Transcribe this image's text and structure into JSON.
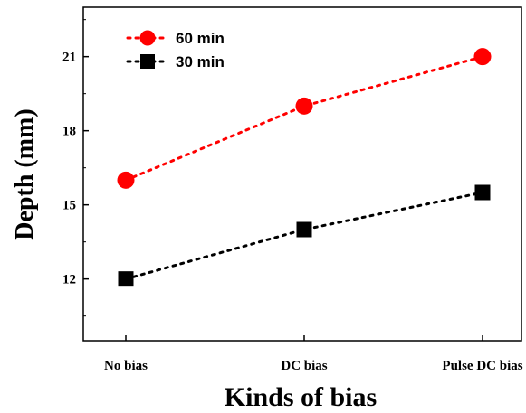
{
  "chart_data": {
    "type": "line",
    "title": "",
    "xlabel": "Kinds of bias",
    "ylabel": "Depth (mm)",
    "categories": [
      "No bias",
      "DC bias",
      "Pulse DC bias"
    ],
    "ylim": [
      9.5,
      23
    ],
    "yticks": [
      12,
      15,
      18,
      21
    ],
    "grid": false,
    "legend_position": "top-left",
    "series": [
      {
        "name": "60 min",
        "values": [
          16,
          19,
          21
        ],
        "color": "#ff0000",
        "marker": "circle",
        "line_style": "dotted"
      },
      {
        "name": "30 min",
        "values": [
          12,
          14,
          15.5
        ],
        "color": "#000000",
        "marker": "square",
        "line_style": "dotted"
      }
    ]
  }
}
